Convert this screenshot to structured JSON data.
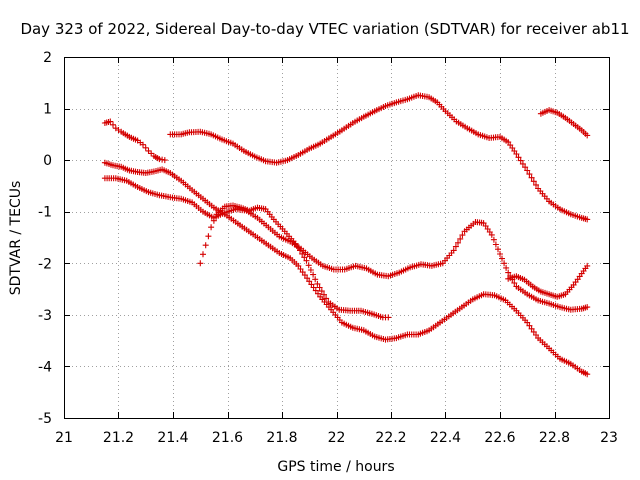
{
  "chart_data": {
    "type": "scatter",
    "title": "Day 323 of 2022, Sidereal Day-to-day VTEC variation (SDTVAR) for receiver ab11",
    "xlabel": "GPS time / hours",
    "ylabel": "SDTVAR / TECUs",
    "xlim": [
      21,
      23
    ],
    "ylim": [
      -5,
      2
    ],
    "xticks": [
      21,
      21.2,
      21.4,
      21.6,
      21.8,
      22,
      22.2,
      22.4,
      22.6,
      22.8,
      23
    ],
    "xtick_labels": [
      "21",
      "21.2",
      "21.4",
      "21.6",
      "21.8",
      "22",
      "22.2",
      "22.4",
      "22.6",
      "22.8",
      "23"
    ],
    "yticks": [
      2,
      1,
      0,
      -1,
      -2,
      -3,
      -4,
      -5
    ],
    "ytick_labels": [
      "2",
      "1",
      "0",
      "-1",
      "-2",
      "-3",
      "-4",
      "-5"
    ],
    "grid": true,
    "legend": "none",
    "marker": "+",
    "marker_color": "#d40000",
    "point_step_hours": 0.008,
    "series": [
      {
        "name": "track-1",
        "points": [
          [
            21.15,
            0.72
          ],
          [
            21.17,
            0.75
          ],
          [
            21.19,
            0.62
          ],
          [
            21.21,
            0.55
          ],
          [
            21.24,
            0.45
          ],
          [
            21.27,
            0.38
          ],
          [
            21.29,
            0.3
          ],
          [
            21.31,
            0.18
          ],
          [
            21.33,
            0.08
          ],
          [
            21.35,
            0.02
          ],
          [
            21.37,
            0.0
          ]
        ]
      },
      {
        "name": "track-2",
        "points": [
          [
            21.39,
            0.5
          ],
          [
            21.43,
            0.5
          ],
          [
            21.46,
            0.54
          ],
          [
            21.5,
            0.55
          ],
          [
            21.54,
            0.5
          ],
          [
            21.58,
            0.4
          ],
          [
            21.62,
            0.32
          ],
          [
            21.66,
            0.18
          ],
          [
            21.7,
            0.07
          ],
          [
            21.74,
            -0.02
          ],
          [
            21.78,
            -0.05
          ],
          [
            21.82,
            0.0
          ],
          [
            21.86,
            0.1
          ],
          [
            21.9,
            0.22
          ],
          [
            21.94,
            0.32
          ],
          [
            21.98,
            0.45
          ],
          [
            22.02,
            0.58
          ],
          [
            22.06,
            0.72
          ],
          [
            22.1,
            0.84
          ],
          [
            22.14,
            0.95
          ],
          [
            22.18,
            1.05
          ],
          [
            22.22,
            1.12
          ],
          [
            22.26,
            1.18
          ],
          [
            22.3,
            1.26
          ],
          [
            22.34,
            1.22
          ],
          [
            22.37,
            1.12
          ],
          [
            22.4,
            0.95
          ],
          [
            22.44,
            0.75
          ],
          [
            22.48,
            0.62
          ],
          [
            22.52,
            0.5
          ],
          [
            22.56,
            0.43
          ],
          [
            22.6,
            0.45
          ],
          [
            22.63,
            0.35
          ],
          [
            22.66,
            0.12
          ],
          [
            22.7,
            -0.2
          ],
          [
            22.74,
            -0.55
          ],
          [
            22.78,
            -0.8
          ],
          [
            22.82,
            -0.95
          ],
          [
            22.86,
            -1.05
          ],
          [
            22.9,
            -1.12
          ],
          [
            22.92,
            -1.15
          ]
        ]
      },
      {
        "name": "track-3",
        "points": [
          [
            22.75,
            0.9
          ],
          [
            22.78,
            0.97
          ],
          [
            22.81,
            0.92
          ],
          [
            22.84,
            0.82
          ],
          [
            22.87,
            0.7
          ],
          [
            22.9,
            0.58
          ],
          [
            22.92,
            0.48
          ]
        ]
      },
      {
        "name": "track-4",
        "points": [
          [
            21.15,
            -0.05
          ],
          [
            21.18,
            -0.1
          ],
          [
            21.21,
            -0.13
          ],
          [
            21.24,
            -0.2
          ],
          [
            21.27,
            -0.23
          ],
          [
            21.3,
            -0.25
          ],
          [
            21.33,
            -0.22
          ],
          [
            21.36,
            -0.18
          ],
          [
            21.39,
            -0.25
          ],
          [
            21.43,
            -0.4
          ],
          [
            21.47,
            -0.58
          ],
          [
            21.51,
            -0.75
          ],
          [
            21.55,
            -0.92
          ],
          [
            21.59,
            -1.05
          ],
          [
            21.63,
            -1.2
          ],
          [
            21.67,
            -1.35
          ],
          [
            21.71,
            -1.5
          ],
          [
            21.75,
            -1.65
          ],
          [
            21.79,
            -1.8
          ],
          [
            21.83,
            -1.9
          ],
          [
            21.86,
            -2.05
          ],
          [
            21.9,
            -2.35
          ],
          [
            21.94,
            -2.65
          ],
          [
            21.98,
            -2.9
          ],
          [
            22.02,
            -3.15
          ],
          [
            22.06,
            -3.25
          ],
          [
            22.1,
            -3.3
          ],
          [
            22.14,
            -3.42
          ],
          [
            22.18,
            -3.48
          ],
          [
            22.22,
            -3.45
          ],
          [
            22.26,
            -3.38
          ],
          [
            22.3,
            -3.38
          ],
          [
            22.34,
            -3.3
          ],
          [
            22.38,
            -3.15
          ],
          [
            22.42,
            -3.0
          ],
          [
            22.46,
            -2.85
          ],
          [
            22.5,
            -2.7
          ],
          [
            22.54,
            -2.6
          ],
          [
            22.58,
            -2.62
          ],
          [
            22.62,
            -2.72
          ],
          [
            22.66,
            -2.92
          ],
          [
            22.7,
            -3.15
          ],
          [
            22.74,
            -3.45
          ],
          [
            22.78,
            -3.65
          ],
          [
            22.82,
            -3.85
          ],
          [
            22.86,
            -3.95
          ],
          [
            22.9,
            -4.1
          ],
          [
            22.92,
            -4.15
          ]
        ]
      },
      {
        "name": "track-5",
        "points": [
          [
            21.15,
            -0.35
          ],
          [
            21.19,
            -0.35
          ],
          [
            21.23,
            -0.4
          ],
          [
            21.27,
            -0.52
          ],
          [
            21.31,
            -0.62
          ],
          [
            21.35,
            -0.68
          ],
          [
            21.39,
            -0.72
          ],
          [
            21.43,
            -0.75
          ],
          [
            21.47,
            -0.82
          ],
          [
            21.51,
            -1.0
          ],
          [
            21.55,
            -1.12
          ],
          [
            21.59,
            -1.02
          ],
          [
            21.63,
            -0.95
          ],
          [
            21.67,
            -0.98
          ],
          [
            21.71,
            -1.12
          ],
          [
            21.75,
            -1.3
          ],
          [
            21.79,
            -1.48
          ],
          [
            21.83,
            -1.58
          ],
          [
            21.87,
            -1.72
          ],
          [
            21.91,
            -1.9
          ],
          [
            21.95,
            -2.05
          ],
          [
            21.99,
            -2.12
          ],
          [
            22.03,
            -2.12
          ],
          [
            22.07,
            -2.05
          ],
          [
            22.11,
            -2.1
          ],
          [
            22.15,
            -2.22
          ],
          [
            22.19,
            -2.25
          ],
          [
            22.23,
            -2.18
          ],
          [
            22.27,
            -2.08
          ],
          [
            22.31,
            -2.02
          ],
          [
            22.35,
            -2.05
          ],
          [
            22.39,
            -2.0
          ],
          [
            22.43,
            -1.75
          ],
          [
            22.47,
            -1.38
          ],
          [
            22.51,
            -1.2
          ],
          [
            22.54,
            -1.22
          ],
          [
            22.57,
            -1.45
          ],
          [
            22.6,
            -1.82
          ],
          [
            22.63,
            -2.18
          ],
          [
            22.66,
            -2.45
          ],
          [
            22.7,
            -2.6
          ],
          [
            22.74,
            -2.72
          ],
          [
            22.78,
            -2.78
          ],
          [
            22.82,
            -2.85
          ],
          [
            22.86,
            -2.9
          ],
          [
            22.9,
            -2.88
          ],
          [
            22.92,
            -2.85
          ]
        ]
      },
      {
        "name": "track-6",
        "points": [
          [
            21.5,
            -2.0
          ],
          [
            21.52,
            -1.65
          ],
          [
            21.54,
            -1.3
          ],
          [
            21.56,
            -1.05
          ],
          [
            21.59,
            -0.9
          ],
          [
            21.62,
            -0.88
          ],
          [
            21.65,
            -0.92
          ],
          [
            21.68,
            -0.98
          ],
          [
            21.71,
            -0.92
          ],
          [
            21.74,
            -0.95
          ],
          [
            21.77,
            -1.15
          ],
          [
            21.81,
            -1.38
          ],
          [
            21.85,
            -1.62
          ],
          [
            21.89,
            -1.95
          ],
          [
            21.93,
            -2.4
          ],
          [
            21.97,
            -2.75
          ],
          [
            22.01,
            -2.9
          ],
          [
            22.05,
            -2.92
          ],
          [
            22.09,
            -2.92
          ],
          [
            22.13,
            -2.98
          ],
          [
            22.17,
            -3.05
          ],
          [
            22.19,
            -3.05
          ]
        ]
      },
      {
        "name": "track-7",
        "points": [
          [
            22.63,
            -2.3
          ],
          [
            22.66,
            -2.25
          ],
          [
            22.69,
            -2.32
          ],
          [
            22.72,
            -2.45
          ],
          [
            22.75,
            -2.55
          ],
          [
            22.78,
            -2.6
          ],
          [
            22.81,
            -2.65
          ],
          [
            22.84,
            -2.6
          ],
          [
            22.87,
            -2.42
          ],
          [
            22.9,
            -2.2
          ],
          [
            22.92,
            -2.05
          ]
        ]
      }
    ]
  }
}
